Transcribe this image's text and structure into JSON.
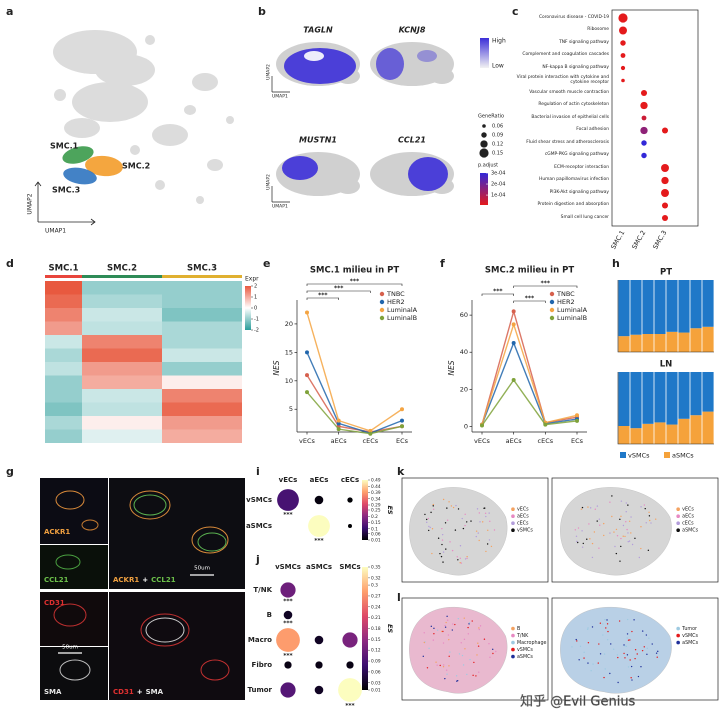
{
  "panel_labels": [
    "a",
    "b",
    "c",
    "d",
    "e",
    "f",
    "g",
    "h",
    "i",
    "j",
    "k",
    "l"
  ],
  "umap": {
    "clusters": [
      "SMC.1",
      "SMC.2",
      "SMC.3"
    ],
    "colors": [
      "#3a9a4a",
      "#f39c2a",
      "#2f74c0"
    ],
    "x_label": "UMAP1",
    "y_label": "UMAP2"
  },
  "feature_plot": {
    "genes": [
      "TAGLN",
      "KCNJ8",
      "MUSTN1",
      "CCL21"
    ],
    "x_label": "UMAP1",
    "y_label": "UMAP2",
    "scale_high": "High",
    "scale_low": "Low"
  },
  "microscopy": {
    "ackr1": "ACKR1",
    "ccl21": "CCL21",
    "merge_top_a": "ACKR1",
    "merge_top_plus": "+",
    "merge_top_b": "CCL21",
    "scale_top": "50um",
    "cd31": "CD31",
    "sma": "SMA",
    "scale_bottom": "50um",
    "merge_bottom_a": "CD31",
    "merge_bottom_plus": "+",
    "merge_bottom_b": "SMA"
  },
  "spatial": [
    {
      "legend": [
        "vECs",
        "aECs",
        "cECs",
        "vSMCs"
      ],
      "colors": [
        "#f4a261",
        "#e78ac3",
        "#b39ddb",
        "#111111"
      ],
      "tissue": "#d6d6d6"
    },
    {
      "legend": [
        "vECs",
        "aECs",
        "cECs",
        "aSMCs"
      ],
      "colors": [
        "#f4a261",
        "#e78ac3",
        "#b39ddb",
        "#111111"
      ],
      "tissue": "#d6d6d6"
    },
    {
      "legend": [
        "B",
        "T/NK",
        "Macrophage",
        "vSMCs",
        "aSMCs"
      ],
      "colors": [
        "#f4a261",
        "#e78ac3",
        "#9ecae1",
        "#e41a1c",
        "#1f2f9a"
      ],
      "tissue": "#e9b9cf"
    },
    {
      "legend": [
        "Tumor",
        "vSMCs",
        "aSMCs"
      ],
      "colors": [
        "#9ecae1",
        "#e41a1c",
        "#1f2f9a"
      ],
      "tissue": "#b9d0e6"
    }
  ],
  "watermark": "知乎 @Evil Genius",
  "chart_data": [
    {
      "type": "dot",
      "categories": [
        "Coronavirus disease - COVID-19",
        "Ribosome",
        "TNF signaling pathway",
        "Complement and coagulation cascades",
        "NF-kappa B signaling pathway",
        "Viral protein interaction with cytokine and cytokine receptor",
        "Vascular smooth muscle contraction",
        "Regulation of actin cytoskeleton",
        "Bacterial invasion of epithelial cells",
        "Focal adhesion",
        "Fluid shear stress and atherosclerosis",
        "cGMP-PKG signaling pathway",
        "ECM-receptor interaction",
        "Human papillomavirus infection",
        "PI3K-Akt signaling pathway",
        "Protein digestion and absorption",
        "Small cell lung cancer"
      ],
      "series": [
        {
          "name": "SMC.1",
          "values": [
            0.15,
            0.13,
            0.09,
            0.08,
            0.07,
            0.06,
            null,
            null,
            null,
            null,
            null,
            null,
            null,
            null,
            null,
            null,
            null
          ],
          "p_adjust": [
            1e-05,
            1e-05,
            1e-05,
            1e-05,
            1e-05,
            1e-05,
            null,
            null,
            null,
            null,
            null,
            null,
            null,
            null,
            null,
            null,
            null
          ]
        },
        {
          "name": "SMC.2",
          "values": [
            null,
            null,
            null,
            null,
            null,
            null,
            0.1,
            0.12,
            0.08,
            0.12,
            0.09,
            0.09,
            null,
            null,
            null,
            null,
            null
          ],
          "p_adjust": [
            null,
            null,
            null,
            null,
            null,
            null,
            1e-05,
            1e-05,
            5e-05,
            0.00015,
            0.0003,
            0.0003,
            null,
            null,
            null,
            null,
            null
          ]
        },
        {
          "name": "SMC.3",
          "values": [
            null,
            null,
            null,
            null,
            null,
            null,
            null,
            null,
            null,
            0.1,
            null,
            null,
            0.13,
            0.12,
            0.13,
            0.1,
            0.1
          ],
          "p_adjust": [
            null,
            null,
            null,
            null,
            null,
            null,
            null,
            null,
            null,
            1e-05,
            null,
            null,
            1e-05,
            1e-05,
            1e-05,
            1e-05,
            1e-05
          ]
        }
      ],
      "size_legend_title": "GeneRatio",
      "size_ticks": [
        0.06,
        0.09,
        0.12,
        0.15
      ],
      "color_legend_title": "p.adjust",
      "color_lim": [
        1e-05,
        0.0003
      ],
      "colors": [
        "#e41a1c",
        "#3228d8"
      ],
      "color_ticks": [
        {
          "value": 0.0003,
          "label": "3e-04"
        },
        {
          "value": 0.0002,
          "label": "2e-04"
        },
        {
          "value": 0.0001,
          "label": "1e-04"
        }
      ]
    },
    {
      "type": "heatmap",
      "x_groups": [
        "SMC.1",
        "SMC.2",
        "SMC.3"
      ],
      "group_colors": [
        "#e8453c",
        "#2e8b57",
        "#e0b030"
      ],
      "values": [
        [
          2,
          -1,
          -1
        ],
        [
          1.8,
          -0.8,
          -1
        ],
        [
          1.5,
          -0.5,
          -1.2
        ],
        [
          1.2,
          -0.6,
          -0.8
        ],
        [
          -0.5,
          1.5,
          -0.8
        ],
        [
          -0.8,
          1.8,
          -0.5
        ],
        [
          -0.6,
          1.2,
          -1
        ],
        [
          -1,
          1,
          0.2
        ],
        [
          -1,
          -0.5,
          1.5
        ],
        [
          -1.2,
          -0.6,
          1.8
        ],
        [
          -0.8,
          0.2,
          1.2
        ],
        [
          -1,
          -0.3,
          1
        ]
      ],
      "clim": [
        -2,
        2
      ],
      "colors": [
        "#2a9d9a",
        "#ffffff",
        "#e8593f"
      ],
      "colorbar_title": "Expr",
      "colorbar_ticks": [
        2,
        1,
        0,
        -1,
        -2
      ]
    },
    {
      "type": "line",
      "title": "SMC.1 milieu in PT",
      "y_label": "NES",
      "categories": [
        "vECs",
        "aECs",
        "cECs",
        "ECs"
      ],
      "series": [
        {
          "name": "TNBC",
          "color": "#d6604d",
          "values": [
            11,
            2,
            1,
            2
          ]
        },
        {
          "name": "HER2",
          "color": "#2166ac",
          "values": [
            15,
            2.5,
            0.8,
            3
          ]
        },
        {
          "name": "LuminalA",
          "color": "#f4a442",
          "values": [
            22,
            3,
            1.2,
            5
          ]
        },
        {
          "name": "LuminalB",
          "color": "#7fa23a",
          "values": [
            8,
            1.5,
            0.7,
            2
          ]
        }
      ],
      "ylim": [
        1,
        23.5
      ],
      "yticks": [
        5,
        10,
        15,
        20
      ],
      "annotations": [
        "***",
        "***",
        "***"
      ]
    },
    {
      "type": "line",
      "title": "SMC.2 milieu in PT",
      "y_label": "NES",
      "categories": [
        "vECs",
        "aECs",
        "cECs",
        "ECs"
      ],
      "series": [
        {
          "name": "TNBC",
          "color": "#d6604d",
          "values": [
            1,
            62,
            2,
            5
          ]
        },
        {
          "name": "HER2",
          "color": "#2166ac",
          "values": [
            1,
            45,
            1.5,
            4
          ]
        },
        {
          "name": "LuminalA",
          "color": "#f4a442",
          "values": [
            1,
            55,
            2,
            6
          ]
        },
        {
          "name": "LuminalB",
          "color": "#7fa23a",
          "values": [
            0.5,
            25,
            1,
            3
          ]
        }
      ],
      "ylim": [
        -3,
        66
      ],
      "yticks": [
        0,
        20,
        40,
        60
      ],
      "annotations": [
        "***",
        "***",
        "***"
      ]
    },
    {
      "type": "stacked_bar",
      "title": "PT",
      "categories": [
        null,
        null,
        null,
        null,
        null,
        null,
        null,
        null
      ],
      "series": [
        {
          "name": "vSMCs",
          "color": "#1f78c8",
          "values": [
            0.78,
            0.76,
            0.75,
            0.75,
            0.72,
            0.73,
            0.67,
            0.65
          ]
        },
        {
          "name": "aSMCs",
          "color": "#f5a23b",
          "values": [
            0.22,
            0.24,
            0.25,
            0.25,
            0.28,
            0.27,
            0.33,
            0.35
          ]
        }
      ],
      "ylim": [
        0,
        1
      ]
    },
    {
      "type": "stacked_bar",
      "title": "LN",
      "categories": [
        null,
        null,
        null,
        null,
        null,
        null,
        null,
        null
      ],
      "series": [
        {
          "name": "vSMCs",
          "color": "#1f78c8",
          "values": [
            0.75,
            0.78,
            0.72,
            0.7,
            0.73,
            0.65,
            0.6,
            0.55
          ]
        },
        {
          "name": "aSMCs",
          "color": "#f5a23b",
          "values": [
            0.25,
            0.22,
            0.28,
            0.3,
            0.27,
            0.35,
            0.4,
            0.45
          ]
        }
      ],
      "ylim": [
        0,
        1
      ]
    },
    {
      "type": "bubble_matrix",
      "categories": [
        "vECs",
        "aECs",
        "cECs"
      ],
      "rows": [
        "vSMCs",
        "aSMCs"
      ],
      "values": [
        [
          0.12,
          0.02,
          0.01
        ],
        [
          null,
          0.49,
          0.01
        ]
      ],
      "sizes": [
        [
          3,
          1,
          0.5
        ],
        [
          null,
          3,
          0.3
        ]
      ],
      "annotations": [
        [
          "***",
          null,
          null
        ],
        [
          null,
          "***",
          null
        ]
      ],
      "clim": [
        0.01,
        0.49
      ],
      "colorbar_title": "ES",
      "colorbar_ticks": [
        0.49,
        0.44,
        0.39,
        0.34,
        0.29,
        0.25,
        0.2,
        0.15,
        0.1,
        0.06,
        0.01
      ]
    },
    {
      "type": "bubble_matrix",
      "categories": [
        "vSMCs",
        "aSMCs",
        "SMCs"
      ],
      "rows": [
        "T/NK",
        "B",
        "Macro",
        "Fibro",
        "Tumor"
      ],
      "values": [
        [
          0.12,
          null,
          null
        ],
        [
          0.03,
          null,
          null
        ],
        [
          0.28,
          0.03,
          0.13
        ],
        [
          0.02,
          0.02,
          0.02
        ],
        [
          0.1,
          0.03,
          0.35
        ]
      ],
      "sizes": [
        [
          2,
          null,
          null
        ],
        [
          1,
          null,
          null
        ],
        [
          3.3,
          1,
          2
        ],
        [
          0.8,
          0.8,
          0.8
        ],
        [
          2,
          1,
          3.3
        ]
      ],
      "annotations": [
        [
          "***",
          null,
          null
        ],
        [
          "***",
          null,
          null
        ],
        [
          "***",
          null,
          null
        ],
        [
          null,
          null,
          null
        ],
        [
          null,
          null,
          "***"
        ]
      ],
      "clim": [
        0.01,
        0.35
      ],
      "colorbar_title": "ES",
      "colorbar_ticks": [
        0.35,
        0.32,
        0.3,
        0.27,
        0.24,
        0.21,
        0.18,
        0.15,
        0.12,
        0.09,
        0.06,
        0.03,
        0.01
      ]
    }
  ]
}
